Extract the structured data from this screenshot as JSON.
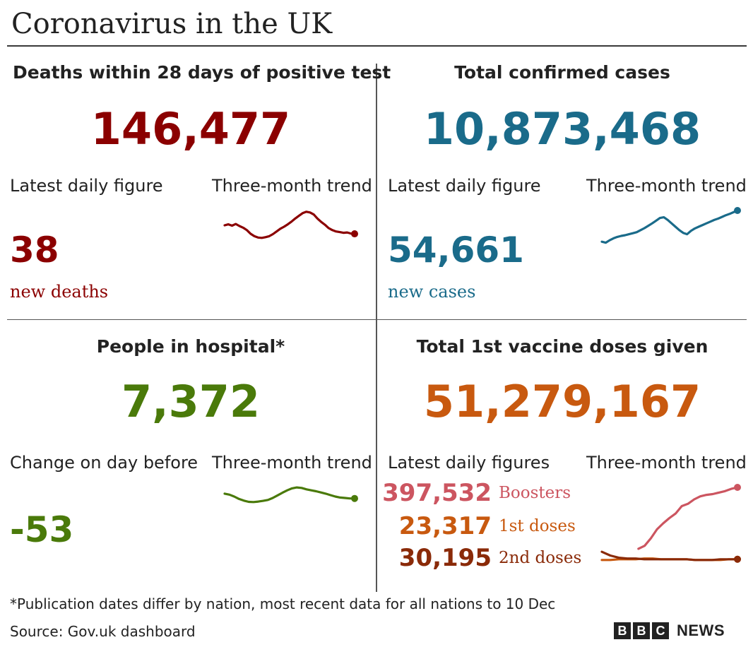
{
  "title": "Coronavirus in the UK",
  "colors": {
    "deaths": "#8b0000",
    "cases": "#1a6b8a",
    "hospital": "#4a7a0a",
    "vaccine": "#c8590f",
    "boosters": "#cc5560",
    "first_doses": "#c8590f",
    "second_doses": "#8a2a08",
    "text": "#222222"
  },
  "deaths": {
    "heading": "Deaths within 28 days of positive test",
    "total": "146,477",
    "daily_label": "Latest daily figure",
    "trend_label": "Three-month trend",
    "daily_value": "38",
    "daily_unit": "new deaths"
  },
  "cases": {
    "heading": "Total confirmed cases",
    "total": "10,873,468",
    "daily_label": "Latest daily figure",
    "trend_label": "Three-month trend",
    "daily_value": "54,661",
    "daily_unit": "new cases"
  },
  "hospital": {
    "heading": "People in hospital*",
    "total": "7,372",
    "daily_label": "Change on day before",
    "trend_label": "Three-month trend",
    "daily_value": "-53"
  },
  "vaccine": {
    "heading": "Total 1st vaccine doses given",
    "total": "51,279,167",
    "daily_label": "Latest daily figures",
    "trend_label": "Three-month trend",
    "rows": [
      {
        "value": "397,532",
        "label": "Boosters"
      },
      {
        "value": "23,317",
        "label": "1st doses"
      },
      {
        "value": "30,195",
        "label": "2nd doses"
      }
    ]
  },
  "footnote": "*Publication dates differ by nation, most recent data for all nations to 10 Dec",
  "source": "Source: Gov.uk dashboard",
  "logo": {
    "letters": [
      "B",
      "B",
      "C"
    ],
    "word": "NEWS"
  },
  "chart_data": [
    {
      "type": "line",
      "series": [
        {
          "values": [
            0.52,
            0.55,
            0.51,
            0.56,
            0.5,
            0.45,
            0.38,
            0.27,
            0.2,
            0.16,
            0.15,
            0.17,
            0.2,
            0.26,
            0.34,
            0.42,
            0.48,
            0.55,
            0.63,
            0.72,
            0.8,
            0.88,
            0.92,
            0.9,
            0.84,
            0.72,
            0.62,
            0.54,
            0.44,
            0.38,
            0.34,
            0.32,
            0.3,
            0.31,
            0.28,
            0.27
          ]
        }
      ]
    },
    {
      "type": "line",
      "series": [
        {
          "values": [
            0.08,
            0.05,
            0.12,
            0.18,
            0.22,
            0.25,
            0.27,
            0.3,
            0.33,
            0.36,
            0.42,
            0.48,
            0.55,
            0.62,
            0.7,
            0.78,
            0.8,
            0.72,
            0.62,
            0.52,
            0.42,
            0.34,
            0.3,
            0.4,
            0.47,
            0.52,
            0.57,
            0.62,
            0.67,
            0.72,
            0.76,
            0.81,
            0.86,
            0.9,
            0.95,
            1.0
          ]
        }
      ]
    },
    {
      "type": "line",
      "series": [
        {
          "values": [
            0.62,
            0.58,
            0.5,
            0.4,
            0.33,
            0.28,
            0.27,
            0.29,
            0.32,
            0.36,
            0.44,
            0.55,
            0.66,
            0.76,
            0.84,
            0.88,
            0.86,
            0.8,
            0.76,
            0.72,
            0.67,
            0.62,
            0.56,
            0.5,
            0.46,
            0.44,
            0.42,
            0.42
          ]
        }
      ]
    },
    {
      "type": "line",
      "series": [
        {
          "name": "Boosters",
          "values": [
            0.18,
            0.22,
            0.32,
            0.44,
            0.52,
            0.59,
            0.65,
            0.75,
            0.78,
            0.84,
            0.88,
            0.9,
            0.91,
            0.93,
            0.95,
            0.98,
            1.0
          ]
        },
        {
          "name": "1st doses",
          "values": [
            0.03,
            0.03,
            0.04,
            0.04,
            0.04,
            0.05,
            0.05,
            0.04,
            0.04,
            0.04,
            0.04,
            0.03,
            0.03,
            0.03,
            0.03,
            0.04,
            0.04
          ]
        },
        {
          "name": "2nd doses",
          "values": [
            0.14,
            0.09,
            0.06,
            0.05,
            0.05,
            0.04,
            0.04,
            0.04,
            0.04,
            0.04,
            0.04,
            0.03,
            0.03,
            0.03,
            0.04,
            0.04,
            0.04
          ]
        }
      ]
    }
  ]
}
